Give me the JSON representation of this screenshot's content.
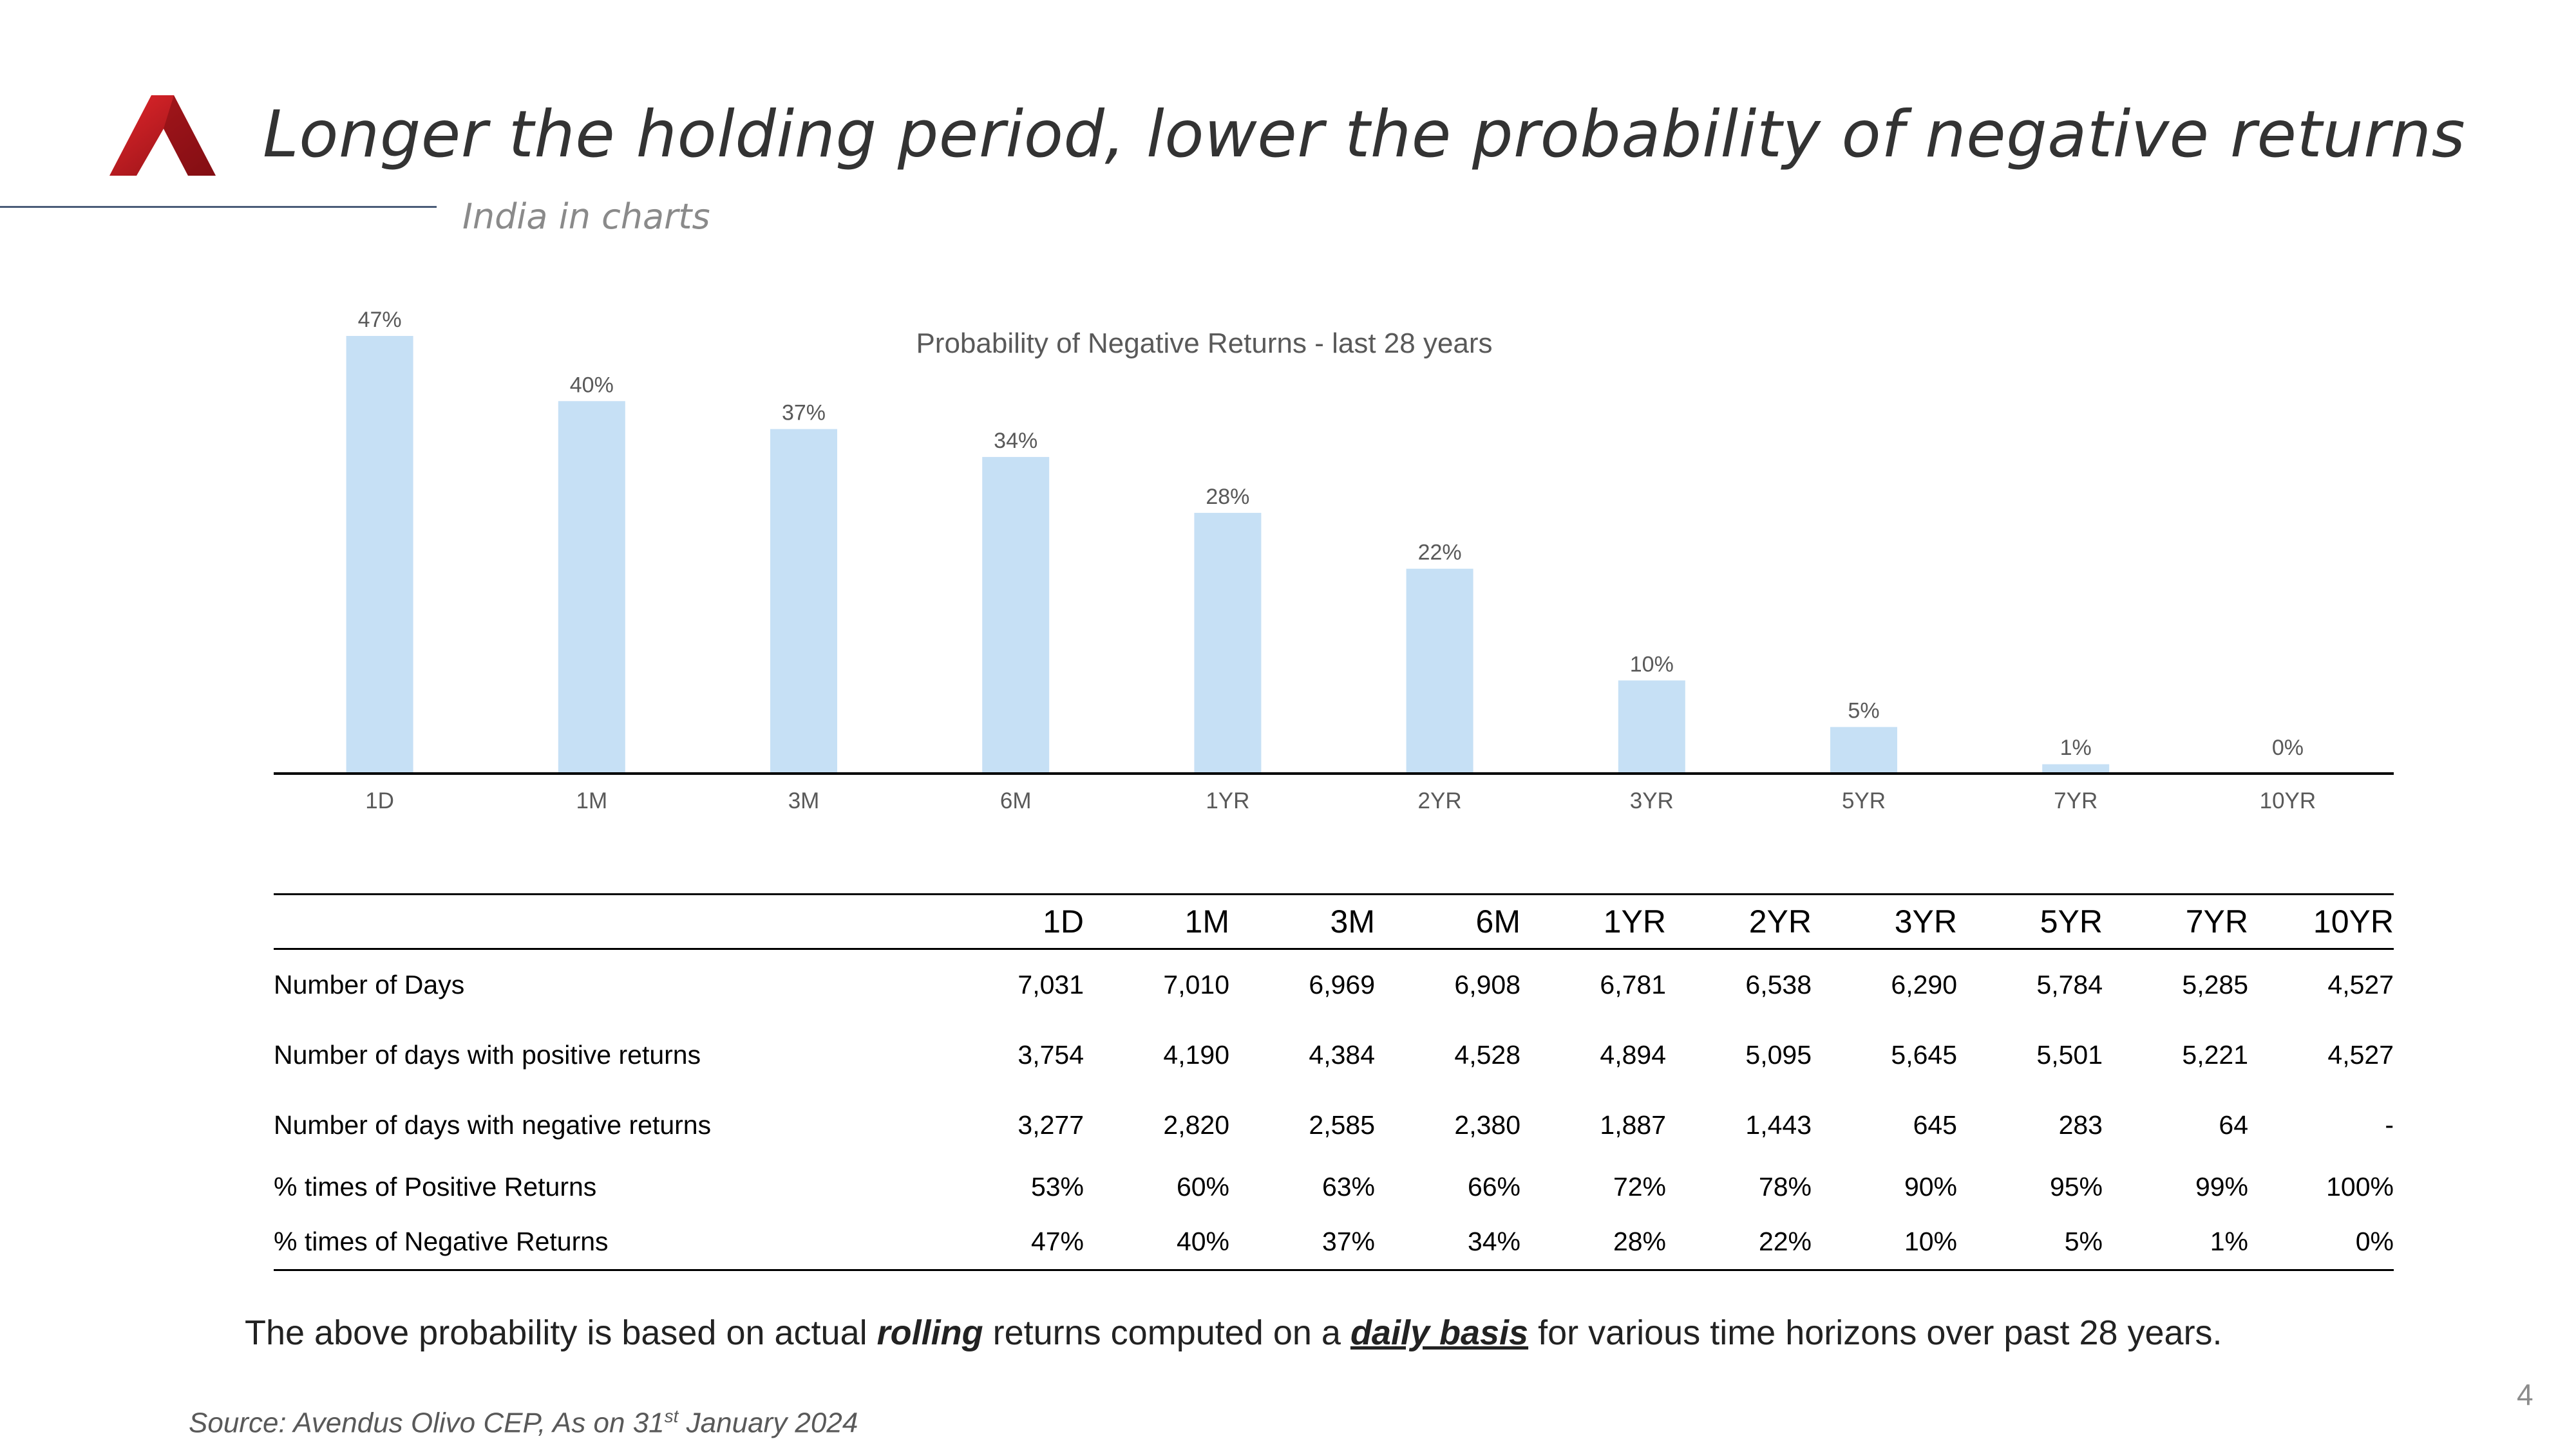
{
  "slide": {
    "title": "Longer the holding period, lower the probability of negative returns",
    "subtitle": "India in charts",
    "page_number": "4"
  },
  "chart_data": {
    "type": "bar",
    "title": "Probability of Negative Returns - last 28 years",
    "categories": [
      "1D",
      "1M",
      "3M",
      "6M",
      "1YR",
      "2YR",
      "3YR",
      "5YR",
      "7YR",
      "10YR"
    ],
    "values": [
      47,
      40,
      37,
      34,
      28,
      22,
      10,
      5,
      1,
      0
    ],
    "data_labels": [
      "47%",
      "40%",
      "37%",
      "34%",
      "28%",
      "22%",
      "10%",
      "5%",
      "1%",
      "0%"
    ],
    "xlabel": "",
    "ylabel": "",
    "ylim": [
      0,
      47
    ],
    "grid": false,
    "bar_color": "#c6e0f5",
    "axis_color": "#000000"
  },
  "table": {
    "columns": [
      "1D",
      "1M",
      "3M",
      "6M",
      "1YR",
      "2YR",
      "3YR",
      "5YR",
      "7YR",
      "10YR"
    ],
    "rows": [
      {
        "label": "Number of  Days",
        "values": [
          "7,031",
          "7,010",
          "6,969",
          "6,908",
          "6,781",
          "6,538",
          "6,290",
          "5,784",
          "5,285",
          "4,527"
        ]
      },
      {
        "label": "Number of  days with positive returns",
        "values": [
          "3,754",
          "4,190",
          "4,384",
          "4,528",
          "4,894",
          "5,095",
          "5,645",
          "5,501",
          "5,221",
          "4,527"
        ]
      },
      {
        "label": "Number of  days with negative returns",
        "values": [
          "3,277",
          "2,820",
          "2,585",
          "2,380",
          "1,887",
          "1,443",
          "645",
          "283",
          "64",
          "-"
        ]
      },
      {
        "label": "% times of Positive Returns",
        "values": [
          "53%",
          "60%",
          "63%",
          "66%",
          "72%",
          "78%",
          "90%",
          "95%",
          "99%",
          "100%"
        ]
      },
      {
        "label": "% times of Negative Returns",
        "values": [
          "47%",
          "40%",
          "37%",
          "34%",
          "28%",
          "22%",
          "10%",
          "5%",
          "1%",
          "0%"
        ]
      }
    ]
  },
  "note": {
    "part1": "The above probability is based on actual ",
    "em1": "rolling",
    "part2": " returns computed on a ",
    "em2": "daily basis",
    "part3": " for various time horizons over past 28 years."
  },
  "source": {
    "prefix": "Source: Avendus Olivo CEP, As on 31",
    "superscript": "st",
    "suffix": " January 2024"
  },
  "colors": {
    "logo_red": "#c8191f",
    "logo_dark_red": "#7e0d12",
    "title_text": "#333333"
  }
}
